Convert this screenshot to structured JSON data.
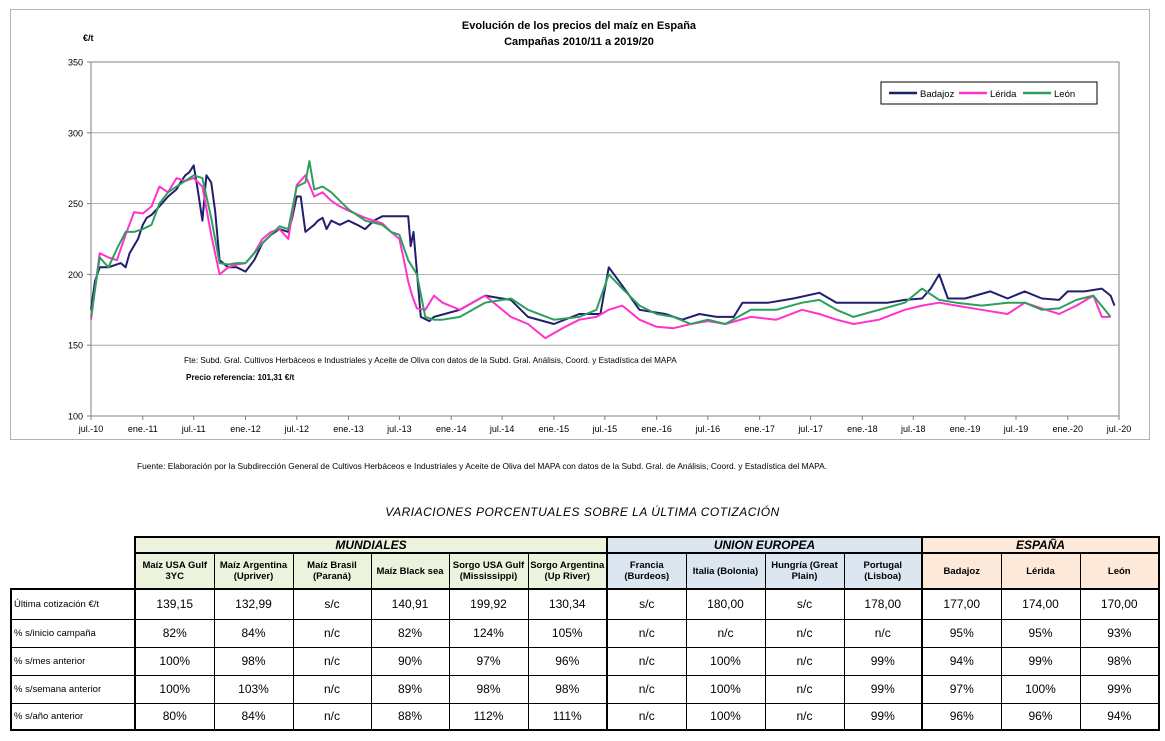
{
  "chart_data": {
    "type": "line",
    "title": "Evolución de los precios del maíz en España",
    "subtitle": "Campañas 2010/11 a 2019/20",
    "ylabel": "€/t",
    "ylim": [
      100,
      350
    ],
    "yticks": [
      100,
      150,
      200,
      250,
      300,
      350
    ],
    "xlim": [
      "2010-07-01",
      "2020-07-01"
    ],
    "xticks": [
      {
        "date": "2010-07-01",
        "label": "jul.-10"
      },
      {
        "date": "2011-01-01",
        "label": "ene.-11"
      },
      {
        "date": "2011-07-01",
        "label": "jul.-11"
      },
      {
        "date": "2012-01-01",
        "label": "ene.-12"
      },
      {
        "date": "2012-07-01",
        "label": "jul.-12"
      },
      {
        "date": "2013-01-01",
        "label": "ene.-13"
      },
      {
        "date": "2013-07-01",
        "label": "jul.-13"
      },
      {
        "date": "2014-01-01",
        "label": "ene.-14"
      },
      {
        "date": "2014-07-01",
        "label": "jul.-14"
      },
      {
        "date": "2015-01-01",
        "label": "ene.-15"
      },
      {
        "date": "2015-07-01",
        "label": "jul.-15"
      },
      {
        "date": "2016-01-01",
        "label": "ene.-16"
      },
      {
        "date": "2016-07-01",
        "label": "jul.-16"
      },
      {
        "date": "2017-01-01",
        "label": "ene.-17"
      },
      {
        "date": "2017-07-01",
        "label": "jul.-17"
      },
      {
        "date": "2018-01-01",
        "label": "ene.-18"
      },
      {
        "date": "2018-07-01",
        "label": "jul.-18"
      },
      {
        "date": "2019-01-01",
        "label": "ene.-19"
      },
      {
        "date": "2019-07-01",
        "label": "jul.-19"
      },
      {
        "date": "2020-01-01",
        "label": "ene.-20"
      },
      {
        "date": "2020-07-01",
        "label": "jul.-20"
      }
    ],
    "grid": "horizontal",
    "legend_position": "top-right",
    "annotations": [
      "Fte: Subd. Gral. Cultivos Herbáceos e Industriales y Aceite de Oliva con datos de la Subd. Gral. Análisis, Coord. y Estadística del MAPA",
      "Precio referencia: 101,31 €/t"
    ],
    "series": [
      {
        "name": "Badajoz",
        "color": "#1f1f6e",
        "x": [
          "2010-07-01",
          "2010-07-15",
          "2010-08-01",
          "2010-09-01",
          "2010-10-15",
          "2010-11-01",
          "2010-11-15",
          "2010-12-15",
          "2011-01-01",
          "2011-01-15",
          "2011-02-01",
          "2011-02-15",
          "2011-03-01",
          "2011-04-01",
          "2011-05-01",
          "2011-05-15",
          "2011-06-01",
          "2011-06-15",
          "2011-07-01",
          "2011-07-15",
          "2011-08-01",
          "2011-08-15",
          "2011-09-01",
          "2011-09-15",
          "2011-10-01",
          "2011-11-01",
          "2011-12-01",
          "2012-01-01",
          "2012-02-01",
          "2012-03-01",
          "2012-04-01",
          "2012-05-01",
          "2012-06-01",
          "2012-06-15",
          "2012-07-01",
          "2012-07-15",
          "2012-08-01",
          "2012-09-01",
          "2012-09-15",
          "2012-10-01",
          "2012-10-15",
          "2012-11-01",
          "2012-12-01",
          "2013-01-01",
          "2013-02-01",
          "2013-03-01",
          "2013-04-01",
          "2013-05-01",
          "2013-06-01",
          "2013-07-01",
          "2013-08-01",
          "2013-08-10",
          "2013-08-20",
          "2013-09-15",
          "2013-10-15",
          "2013-11-01",
          "2014-02-01",
          "2014-05-01",
          "2014-08-01",
          "2014-10-01",
          "2015-01-01",
          "2015-04-01",
          "2015-06-15",
          "2015-07-01",
          "2015-07-15",
          "2015-09-01",
          "2015-11-01",
          "2016-02-01",
          "2016-04-01",
          "2016-06-01",
          "2016-08-01",
          "2016-10-01",
          "2016-11-01",
          "2017-02-01",
          "2017-05-01",
          "2017-08-01",
          "2017-10-01",
          "2018-01-01",
          "2018-04-01",
          "2018-06-01",
          "2018-08-01",
          "2018-09-01",
          "2018-10-01",
          "2018-11-01",
          "2019-01-01",
          "2019-04-01",
          "2019-06-01",
          "2019-08-01",
          "2019-10-01",
          "2019-12-01",
          "2020-01-01",
          "2020-03-01",
          "2020-05-01",
          "2020-06-01",
          "2020-06-15"
        ],
        "y": [
          175,
          195,
          205,
          205,
          208,
          205,
          215,
          225,
          235,
          240,
          242,
          245,
          248,
          255,
          260,
          265,
          270,
          272,
          277,
          260,
          238,
          270,
          265,
          245,
          210,
          205,
          205,
          202,
          210,
          222,
          228,
          232,
          230,
          240,
          255,
          255,
          230,
          235,
          238,
          240,
          232,
          238,
          235,
          238,
          235,
          232,
          238,
          241,
          241,
          241,
          241,
          220,
          230,
          170,
          167,
          170,
          175,
          185,
          182,
          170,
          165,
          172,
          172,
          190,
          205,
          192,
          175,
          172,
          168,
          172,
          170,
          170,
          180,
          180,
          183,
          187,
          180,
          180,
          180,
          182,
          183,
          190,
          200,
          183,
          183,
          188,
          183,
          188,
          183,
          182,
          188,
          188,
          190,
          185,
          178
        ]
      },
      {
        "name": "Lérida",
        "color": "#ff33cc",
        "x": [
          "2010-07-01",
          "2010-08-01",
          "2010-09-01",
          "2010-10-01",
          "2010-11-01",
          "2010-12-01",
          "2011-01-01",
          "2011-02-01",
          "2011-03-01",
          "2011-04-01",
          "2011-05-01",
          "2011-06-01",
          "2011-07-01",
          "2011-08-01",
          "2011-09-01",
          "2011-10-01",
          "2011-11-01",
          "2011-12-01",
          "2012-01-01",
          "2012-02-01",
          "2012-03-01",
          "2012-04-01",
          "2012-05-01",
          "2012-06-01",
          "2012-07-01",
          "2012-08-01",
          "2012-09-01",
          "2012-10-01",
          "2012-11-01",
          "2012-12-01",
          "2013-01-01",
          "2013-03-01",
          "2013-05-01",
          "2013-06-01",
          "2013-07-01",
          "2013-07-15",
          "2013-08-01",
          "2013-08-15",
          "2013-09-01",
          "2013-10-01",
          "2013-11-01",
          "2013-12-01",
          "2014-02-01",
          "2014-05-01",
          "2014-08-01",
          "2014-10-01",
          "2014-12-01",
          "2015-02-01",
          "2015-04-01",
          "2015-06-01",
          "2015-07-15",
          "2015-09-01",
          "2015-11-01",
          "2016-01-01",
          "2016-03-01",
          "2016-05-01",
          "2016-07-01",
          "2016-09-01",
          "2016-12-01",
          "2017-03-01",
          "2017-06-01",
          "2017-08-01",
          "2017-10-01",
          "2017-12-01",
          "2018-03-01",
          "2018-06-01",
          "2018-08-01",
          "2018-10-01",
          "2018-12-01",
          "2019-03-01",
          "2019-06-01",
          "2019-08-01",
          "2019-10-01",
          "2019-12-01",
          "2020-02-01",
          "2020-04-01",
          "2020-05-01",
          "2020-06-01"
        ],
        "y": [
          168,
          215,
          212,
          210,
          228,
          244,
          243,
          248,
          262,
          258,
          268,
          266,
          268,
          262,
          228,
          200,
          205,
          207,
          208,
          215,
          225,
          230,
          232,
          225,
          263,
          270,
          255,
          258,
          252,
          248,
          245,
          240,
          236,
          230,
          225,
          212,
          195,
          185,
          176,
          175,
          185,
          180,
          175,
          185,
          170,
          165,
          155,
          162,
          168,
          170,
          175,
          178,
          168,
          163,
          162,
          165,
          167,
          165,
          170,
          168,
          175,
          172,
          168,
          165,
          168,
          175,
          178,
          180,
          178,
          175,
          172,
          180,
          176,
          172,
          178,
          185,
          170,
          170
        ]
      },
      {
        "name": "León",
        "color": "#2ca05a",
        "x": [
          "2010-07-01",
          "2010-08-01",
          "2010-09-01",
          "2010-10-01",
          "2010-11-01",
          "2010-12-01",
          "2011-01-01",
          "2011-02-01",
          "2011-03-01",
          "2011-04-01",
          "2011-05-01",
          "2011-06-01",
          "2011-07-01",
          "2011-08-01",
          "2011-09-01",
          "2011-10-01",
          "2011-11-01",
          "2011-12-01",
          "2012-01-01",
          "2012-02-01",
          "2012-03-01",
          "2012-04-01",
          "2012-05-01",
          "2012-06-01",
          "2012-07-01",
          "2012-08-01",
          "2012-08-15",
          "2012-09-01",
          "2012-10-01",
          "2012-11-01",
          "2012-12-01",
          "2013-01-01",
          "2013-03-01",
          "2013-05-01",
          "2013-06-01",
          "2013-07-01",
          "2013-08-01",
          "2013-09-01",
          "2013-10-01",
          "2013-11-01",
          "2013-12-01",
          "2014-02-01",
          "2014-05-01",
          "2014-08-01",
          "2014-10-01",
          "2015-01-01",
          "2015-04-01",
          "2015-06-01",
          "2015-07-15",
          "2015-09-01",
          "2015-11-01",
          "2016-01-01",
          "2016-03-01",
          "2016-05-01",
          "2016-07-01",
          "2016-09-01",
          "2016-12-01",
          "2017-03-01",
          "2017-06-01",
          "2017-08-01",
          "2017-10-01",
          "2017-12-01",
          "2018-03-01",
          "2018-06-01",
          "2018-08-01",
          "2018-10-01",
          "2018-12-01",
          "2019-03-01",
          "2019-06-01",
          "2019-08-01",
          "2019-10-01",
          "2019-12-01",
          "2020-02-01",
          "2020-04-01",
          "2020-06-01"
        ],
        "y": [
          170,
          212,
          205,
          218,
          230,
          230,
          232,
          235,
          250,
          258,
          262,
          266,
          270,
          268,
          240,
          208,
          207,
          208,
          208,
          215,
          222,
          228,
          234,
          232,
          262,
          265,
          280,
          260,
          262,
          258,
          252,
          246,
          238,
          235,
          230,
          228,
          210,
          200,
          170,
          168,
          168,
          170,
          180,
          183,
          175,
          168,
          170,
          175,
          200,
          190,
          178,
          172,
          170,
          165,
          168,
          165,
          175,
          175,
          180,
          182,
          175,
          170,
          175,
          180,
          190,
          182,
          180,
          178,
          180,
          180,
          175,
          176,
          182,
          185,
          170
        ]
      }
    ]
  },
  "table": {
    "title": "VARIACIONES PORCENTUALES SOBRE LA ÚLTIMA COTIZACIÓN",
    "groups": [
      {
        "label": "MUNDIALES",
        "color": "#ebf3dc"
      },
      {
        "label": "UNION EUROPEA",
        "color": "#dce6f1"
      },
      {
        "label": "ESPAÑA",
        "color": "#fde9d9"
      }
    ],
    "headers": [
      "Maíz USA Gulf  3YC",
      "Maíz Argentina (Upriver)",
      "Maíz Brasil (Paraná)",
      "Maíz Black sea",
      "Sorgo USA Gulf (Mississippi)",
      "Sorgo Argentina (Up River)",
      "Francia (Burdeos)",
      "Italia (Bolonia)",
      "Hungría (Great Plain)",
      "Portugal (Lisboa)",
      "Badajoz",
      "Lérida",
      "León"
    ],
    "rows": [
      {
        "label": "Última cotización €/t",
        "values": [
          "139,15",
          "132,99",
          "s/c",
          "140,91",
          "199,92",
          "130,34",
          "s/c",
          "180,00",
          "s/c",
          "178,00",
          "177,00",
          "174,00",
          "170,00"
        ]
      },
      {
        "label": "% s/inicio campaña",
        "values": [
          "82%",
          "84%",
          "n/c",
          "82%",
          "124%",
          "105%",
          "n/c",
          "n/c",
          "n/c",
          "n/c",
          "95%",
          "95%",
          "93%"
        ]
      },
      {
        "label": "% s/mes anterior",
        "values": [
          "100%",
          "98%",
          "n/c",
          "90%",
          "97%",
          "96%",
          "n/c",
          "100%",
          "n/c",
          "99%",
          "94%",
          "99%",
          "98%"
        ]
      },
      {
        "label": "% s/semana anterior",
        "values": [
          "100%",
          "103%",
          "n/c",
          "89%",
          "98%",
          "98%",
          "n/c",
          "100%",
          "n/c",
          "99%",
          "97%",
          "100%",
          "99%"
        ]
      },
      {
        "label": "% s/año anterior",
        "values": [
          "80%",
          "84%",
          "n/c",
          "88%",
          "112%",
          "111%",
          "n/c",
          "100%",
          "n/c",
          "99%",
          "96%",
          "96%",
          "94%"
        ]
      }
    ]
  },
  "footer_source": "Fuente: Elaboración por la Subdirección General de Cultivos Herbáceos e Industriales y Aceite de Oliva del MAPA con datos de la Subd. Gral. de Análisis, Coord. y Estadística del MAPA."
}
